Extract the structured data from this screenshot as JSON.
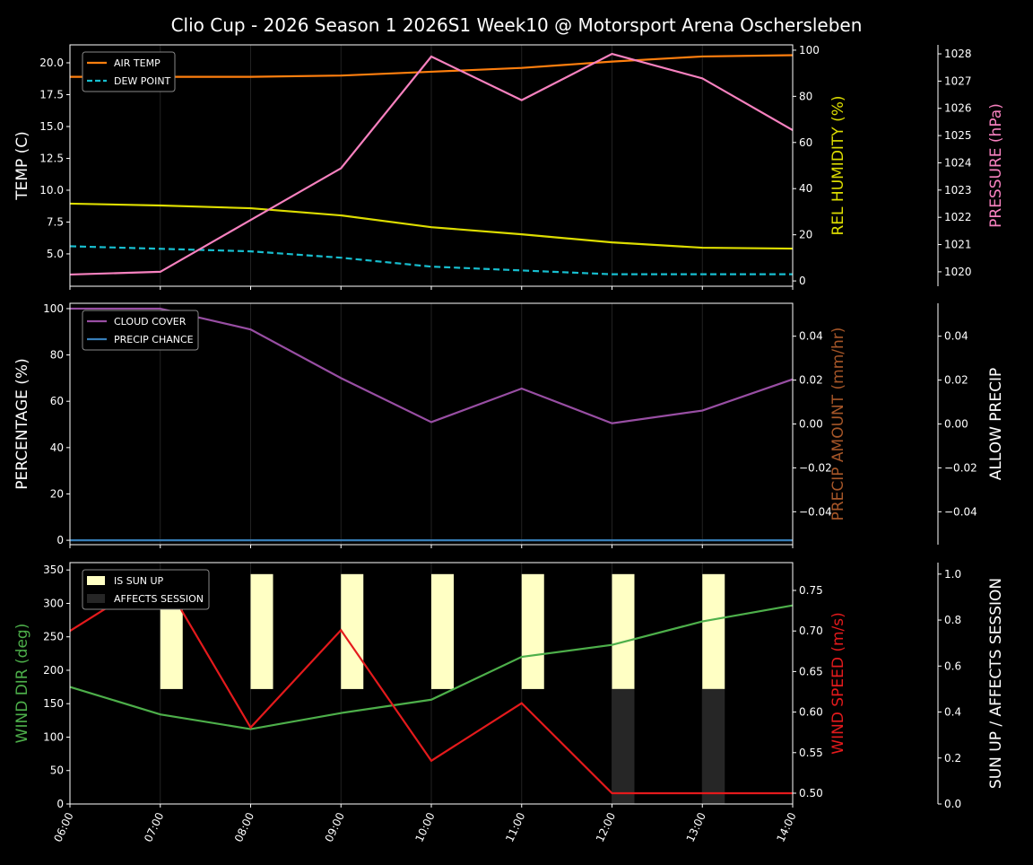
{
  "title": "Clio Cup - 2026 Season 1 2026S1 Week10 @ Motorsport Arena Oschersleben",
  "chart_data": [
    {
      "type": "line",
      "x": [
        "06:00",
        "07:00",
        "08:00",
        "09:00",
        "10:00",
        "11:00",
        "12:00",
        "13:00",
        "14:00"
      ],
      "ylabel": "TEMP (C)",
      "ylim": [
        2.46,
        21.41
      ],
      "yticks": [
        5.0,
        7.5,
        10.0,
        12.5,
        15.0,
        17.5,
        20.0
      ],
      "ytick_labels": [
        "5.0",
        "7.5",
        "10.0",
        "12.5",
        "15.0",
        "17.5",
        "20.0"
      ],
      "legend": "top-left",
      "series": [
        {
          "name": "AIR TEMP",
          "color": "#ff7f0e",
          "style": "solid",
          "axis": "left",
          "values": [
            18.9,
            18.9,
            18.9,
            19.0,
            19.3,
            19.6,
            20.1,
            20.5,
            20.6
          ]
        },
        {
          "name": "DEW POINT",
          "color": "#17becf",
          "style": "dashed",
          "axis": "left",
          "values": [
            5.6,
            5.4,
            5.2,
            4.7,
            4.0,
            3.7,
            3.4,
            3.4,
            3.4
          ]
        },
        {
          "color": "#dddd00",
          "style": "solid",
          "axis": "right1",
          "values": [
            33.5,
            32.7,
            31.5,
            28.4,
            23.3,
            20.2,
            16.7,
            14.4,
            14.0
          ]
        },
        {
          "color": "#f781bf",
          "style": "solid",
          "axis": "right2",
          "values": [
            1019.9,
            1020.0,
            1021.9,
            1023.8,
            1027.9,
            1026.3,
            1028.0,
            1027.1,
            1025.2
          ]
        }
      ],
      "right1": {
        "label": "REL HUMIDITY (%)",
        "color": "#dddd00",
        "ylim": [
          -2.3,
          102.3
        ],
        "ticks": [
          0,
          20,
          40,
          60,
          80,
          100
        ],
        "tick_labels": [
          "0",
          "20",
          "40",
          "60",
          "80",
          "100"
        ]
      },
      "right2": {
        "label": "PRESSURE (hPa)",
        "color": "#f781bf",
        "ylim": [
          1019.47,
          1028.33
        ],
        "ticks": [
          1020,
          1021,
          1022,
          1023,
          1024,
          1025,
          1026,
          1027,
          1028
        ],
        "tick_labels": [
          "1020",
          "1021",
          "1022",
          "1023",
          "1024",
          "1025",
          "1026",
          "1027",
          "1028"
        ]
      }
    },
    {
      "type": "line",
      "x": [
        "06:00",
        "07:00",
        "08:00",
        "09:00",
        "10:00",
        "11:00",
        "12:00",
        "13:00",
        "14:00"
      ],
      "ylabel": "PERCENTAGE (%)",
      "ylim": [
        -1.9,
        102.3
      ],
      "yticks": [
        0,
        20,
        40,
        60,
        80,
        100
      ],
      "ytick_labels": [
        "0",
        "20",
        "40",
        "60",
        "80",
        "100"
      ],
      "legend": "top-left",
      "series": [
        {
          "name": "CLOUD COVER",
          "color": "#984ea3",
          "style": "solid",
          "axis": "left",
          "values": [
            100,
            100,
            91,
            70,
            51,
            65.5,
            50.5,
            56,
            69.5
          ]
        },
        {
          "name": "PRECIP CHANCE",
          "color": "#377eb8",
          "style": "solid",
          "axis": "left",
          "values": [
            0,
            0,
            0,
            0,
            0,
            0,
            0,
            0,
            0
          ]
        }
      ],
      "right1": {
        "label": "PRECIP AMOUNT (mm/hr)",
        "color": "#a65628",
        "ylim": [
          -0.055,
          0.055
        ],
        "ticks": [
          -0.04,
          -0.02,
          0,
          0.02,
          0.04
        ],
        "tick_labels": [
          "−0.04",
          "−0.02",
          "0.00",
          "0.02",
          "0.04"
        ]
      },
      "right2": {
        "label": "ALLOW PRECIP",
        "color": "#ffffff",
        "ylim": [
          -0.055,
          0.055
        ],
        "ticks": [
          -0.04,
          -0.02,
          0,
          0.02,
          0.04
        ],
        "tick_labels": [
          "−0.04",
          "−0.02",
          "0.00",
          "0.02",
          "0.04"
        ]
      }
    },
    {
      "type": "line",
      "x": [
        "06:00",
        "07:00",
        "08:00",
        "09:00",
        "10:00",
        "11:00",
        "12:00",
        "13:00",
        "14:00"
      ],
      "ylabel": "WIND DIR (deg)",
      "ylabel_color": "#4daf4a",
      "ylim": [
        0,
        361
      ],
      "yticks": [
        0,
        50,
        100,
        150,
        200,
        250,
        300,
        350
      ],
      "ytick_labels": [
        "0",
        "50",
        "100",
        "150",
        "200",
        "250",
        "300",
        "350"
      ],
      "legend": "top-left",
      "bars": [
        {
          "name": "IS SUN UP",
          "color": "#ffffc4",
          "values": [
            0,
            1,
            1,
            1,
            1,
            1,
            1,
            1,
            0
          ]
        },
        {
          "name": "AFFECTS SESSION",
          "color": "#262626",
          "values": [
            0,
            0,
            0,
            0,
            0,
            0,
            1,
            1,
            0
          ]
        }
      ],
      "series": [
        {
          "color": "#4daf4a",
          "style": "solid",
          "axis": "left",
          "values": [
            175,
            134,
            112,
            136,
            156,
            220,
            238,
            273,
            297
          ]
        },
        {
          "color": "#e41a1c",
          "style": "solid",
          "axis": "right1",
          "values": [
            0.7,
            0.77,
            0.581,
            0.701,
            0.54,
            0.611,
            0.5,
            0.5,
            0.5
          ]
        }
      ],
      "right1": {
        "label": "WIND SPEED (m/s)",
        "color": "#e41a1c",
        "ylim": [
          0.4867,
          0.7843
        ],
        "ticks": [
          0.5,
          0.55,
          0.6,
          0.65,
          0.7,
          0.75
        ],
        "tick_labels": [
          "0.50",
          "0.55",
          "0.60",
          "0.65",
          "0.70",
          "0.75"
        ]
      },
      "right2": {
        "label": "SUN UP / AFFECTS SESSION",
        "color": "#ffffff",
        "ylim": [
          0,
          1.05
        ],
        "ticks": [
          0,
          0.2,
          0.4,
          0.6,
          0.8,
          1.0
        ],
        "tick_labels": [
          "0.0",
          "0.2",
          "0.4",
          "0.6",
          "0.8",
          "1.0"
        ]
      }
    }
  ]
}
